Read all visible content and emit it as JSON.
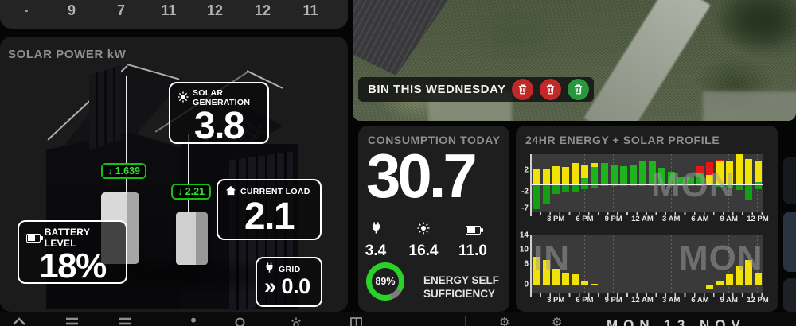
{
  "forecast_strip": {
    "values": [
      "9",
      "7",
      "11",
      "12",
      "12",
      "11"
    ]
  },
  "solar_card": {
    "title": "SOLAR POWER kW",
    "badges": {
      "solar_generation": {
        "icon": "sun-icon",
        "label": "SOLAR GENERATION",
        "value": "3.8"
      },
      "current_load": {
        "icon": "house-icon",
        "label": "CURRENT LOAD",
        "value": "2.1"
      },
      "battery_level": {
        "icon": "battery-icon",
        "label": "BATTERY LEVEL",
        "value": "18%"
      },
      "grid": {
        "icon": "plug-icon",
        "label": "GRID",
        "prefix": "»",
        "value": "0.0"
      }
    },
    "flows": [
      {
        "icon": "down-arrow-icon",
        "value": "↓ 1.639"
      },
      {
        "icon": "down-arrow-icon",
        "value": "↓ 2.21"
      }
    ]
  },
  "camera_card": {
    "overlay_label": "BIN THIS WEDNESDAY",
    "bins": [
      "red",
      "red",
      "green"
    ],
    "bin_colors": {
      "red": "#c32828",
      "green": "#27993c"
    }
  },
  "consumption_card": {
    "title": "CONSUMPTION TODAY",
    "total": "30.7",
    "metrics": [
      {
        "icon": "plug-icon",
        "value": "3.4"
      },
      {
        "icon": "sun-icon",
        "value": "16.4"
      },
      {
        "icon": "battery-icon",
        "value": "11.0"
      }
    ],
    "gauge": {
      "percent": 89,
      "value": "89%",
      "label_line1": "ENERGY SELF",
      "label_line2": "SUFFICIENCY",
      "color_on": "#29d229",
      "color_off": "#7d7d7d"
    }
  },
  "profile_card": {
    "title": "24HR ENERGY + SOLAR PROFILE"
  },
  "chart_data": [
    {
      "type": "bar",
      "title": "24hr energy flow, stacked hourly bars (kW)",
      "categories": [
        "1 PM",
        "2 PM",
        "3 PM",
        "4 PM",
        "5 PM",
        "6 PM",
        "7 PM",
        "8 PM",
        "9 PM",
        "10 PM",
        "11 PM",
        "12 AM",
        "1 AM",
        "2 AM",
        "3 AM",
        "4 AM",
        "5 AM",
        "6 AM",
        "7 AM",
        "8 AM",
        "9 AM",
        "10 AM",
        "11 AM",
        "12 PM"
      ],
      "x_tick_labels": [
        "3 PM",
        "6 PM",
        "9 PM",
        "12 AM",
        "3 AM",
        "6 AM",
        "9 AM",
        "12 PM"
      ],
      "y_ticks": [
        2,
        -2,
        -7
      ],
      "watermark": "MON",
      "color_map": {
        "y": "#f2e205",
        "g": "#1db41d",
        "r": "#e51717",
        "neg": "#13a013"
      },
      "bars": [
        {
          "a": [
            [
              "y",
              2.2
            ]
          ],
          "b": 7
        },
        {
          "a": [
            [
              "y",
              2.2
            ]
          ],
          "b": 5.5
        },
        {
          "a": [
            [
              "y",
              2.5
            ]
          ],
          "b": 2.5
        },
        {
          "a": [
            [
              "y",
              2.4
            ]
          ],
          "b": 2.0
        },
        {
          "a": [
            [
              "y",
              2.9
            ]
          ],
          "b": 1.8
        },
        {
          "a": [
            [
              "g",
              0.9
            ],
            [
              "y",
              1.8
            ]
          ],
          "b": 1.2
        },
        {
          "a": [
            [
              "g",
              2.4
            ],
            [
              "y",
              0.5
            ]
          ],
          "b": 0.6
        },
        {
          "a": [
            [
              "g",
              2.9
            ]
          ],
          "b": 0.3
        },
        {
          "a": [
            [
              "g",
              2.6
            ]
          ],
          "b": 0.3
        },
        {
          "a": [
            [
              "g",
              2.5
            ]
          ],
          "b": 0.3
        },
        {
          "a": [
            [
              "g",
              2.6
            ]
          ],
          "b": 0.3
        },
        {
          "a": [
            [
              "g",
              3.3
            ]
          ],
          "b": 0.3
        },
        {
          "a": [
            [
              "g",
              3.1
            ]
          ],
          "b": 0.3
        },
        {
          "a": [
            [
              "g",
              2.3
            ]
          ],
          "b": 0.3
        },
        {
          "a": [
            [
              "g",
              1.7
            ]
          ],
          "b": 0.2
        },
        {
          "a": [
            [
              "g",
              1.0
            ]
          ],
          "b": 0.2
        },
        {
          "a": [
            [
              "g",
              1.1
            ]
          ],
          "b": 0.2
        },
        {
          "a": [
            [
              "g",
              1.6
            ],
            [
              "r",
              0.9
            ]
          ],
          "b": 0.3
        },
        {
          "a": [
            [
              "y",
              1.3
            ],
            [
              "r",
              1.7
            ]
          ],
          "b": 0
        },
        {
          "a": [
            [
              "y",
              3.1
            ],
            [
              "r",
              0.3
            ]
          ],
          "b": 0.4
        },
        {
          "a": [
            [
              "y",
              3.3
            ]
          ],
          "b": 0.9
        },
        {
          "a": [
            [
              "y",
              4.1
            ]
          ],
          "b": 1.4
        },
        {
          "a": [
            [
              "y",
              3.5
            ]
          ],
          "b": 4.2
        },
        {
          "a": [
            [
              "g",
              0.3
            ],
            [
              "y",
              3.0
            ]
          ],
          "b": 1.2
        }
      ]
    },
    {
      "type": "bar",
      "title": "24hr solar production, hourly bars (kW)",
      "categories": [
        "1 PM",
        "2 PM",
        "3 PM",
        "4 PM",
        "5 PM",
        "6 PM",
        "7 PM",
        "8 PM",
        "9 PM",
        "10 PM",
        "11 PM",
        "12 AM",
        "1 AM",
        "2 AM",
        "3 AM",
        "4 AM",
        "5 AM",
        "6 AM",
        "7 AM",
        "8 AM",
        "9 AM",
        "10 AM",
        "11 AM",
        "12 PM"
      ],
      "x_tick_labels": [
        "3 PM",
        "6 PM",
        "9 PM",
        "12 AM",
        "3 AM",
        "6 AM",
        "9 AM",
        "12 PM"
      ],
      "y_ticks": [
        14,
        10,
        6,
        0
      ],
      "watermarks": [
        "IN",
        "MON"
      ],
      "bar_color": "#f2e205",
      "values": [
        8,
        7,
        4.5,
        3.5,
        3,
        1.2,
        0.3,
        0,
        0,
        0,
        0,
        0,
        0,
        0,
        0,
        0,
        0,
        0,
        -0.8,
        1.2,
        3.2,
        5.5,
        7,
        3.5
      ]
    }
  ],
  "toolbar": {
    "icons": [
      "home-icon",
      "list-icon",
      "list-icon",
      "person-icon",
      "search-icon",
      "brightness-icon",
      "grid-icon",
      "gear-icon",
      "gear-icon"
    ],
    "clipped_text": "MON 13 NOV"
  }
}
